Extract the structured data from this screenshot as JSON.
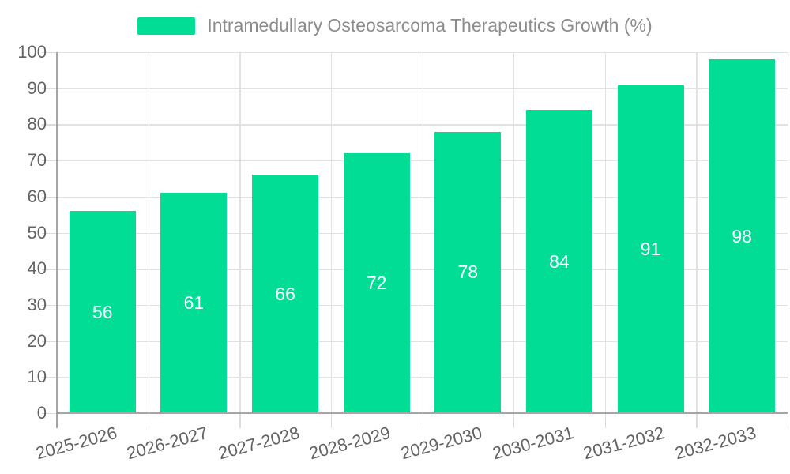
{
  "chart_data": {
    "type": "bar",
    "title": "Intramedullary Osteosarcoma Therapeutics Growth (%)",
    "categories": [
      "2025-2026",
      "2026-2027",
      "2027-2028",
      "2028-2029",
      "2029-2030",
      "2030-2031",
      "2031-2032",
      "2032-2033"
    ],
    "values": [
      56,
      61,
      66,
      72,
      78,
      84,
      91,
      98
    ],
    "xlabel": "",
    "ylabel": "",
    "ylim": [
      0,
      100
    ],
    "yticks": [
      0,
      10,
      20,
      30,
      40,
      50,
      60,
      70,
      80,
      90,
      100
    ],
    "grid": true,
    "legend_position": "top-center",
    "value_label_position": "inside-center",
    "x_label_rotation_deg": 15,
    "colors": {
      "bar": "#02DD96",
      "value_text": "#ffffff",
      "grid": "#e2e2e2",
      "tick": "#dcdcdc",
      "axis_line": "#a6a6a6",
      "axis_text": "#636363",
      "legend_text": "#8c8c8c",
      "background": "#ffffff"
    }
  }
}
